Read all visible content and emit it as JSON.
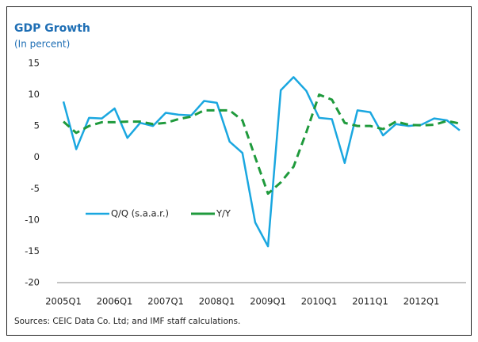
{
  "chart_data": {
    "type": "line",
    "title": "GDP Growth",
    "subtitle": "(In percent)",
    "source": "Sources: CEIC Data Co. Ltd; and IMF staff calculations.",
    "categories": [
      "2005Q1",
      null,
      null,
      null,
      "2006Q1",
      null,
      null,
      null,
      "2007Q1",
      null,
      null,
      null,
      "2008Q1",
      null,
      null,
      null,
      "2009Q1",
      null,
      null,
      null,
      "2010Q1",
      null,
      null,
      null,
      "2011Q1",
      null,
      null,
      null,
      "2012Q1",
      null,
      null,
      null
    ],
    "series": [
      {
        "name": "Q/Q (s.a.a.r.)",
        "color": "#1aa7e0",
        "dashed": false,
        "values": [
          8.9,
          1.3,
          6.3,
          6.2,
          7.8,
          3.1,
          5.5,
          5.0,
          7.1,
          6.8,
          6.7,
          9.0,
          8.7,
          2.5,
          0.7,
          -10.4,
          -14.2,
          10.7,
          12.8,
          10.6,
          6.3,
          6.1,
          -0.9,
          7.5,
          7.2,
          3.5,
          5.3,
          5.0,
          5.2,
          6.2,
          5.9,
          4.3
        ]
      },
      {
        "name": "Y/Y",
        "color": "#1f9a3c",
        "dashed": true,
        "values": [
          5.7,
          3.9,
          5.0,
          5.6,
          5.6,
          5.7,
          5.7,
          5.3,
          5.5,
          6.1,
          6.5,
          7.5,
          7.5,
          7.5,
          5.9,
          0.0,
          -5.8,
          -4.0,
          -1.5,
          4.0,
          10.0,
          9.2,
          5.5,
          5.0,
          5.0,
          4.5,
          5.7,
          5.2,
          5.1,
          5.2,
          5.8,
          5.4
        ]
      }
    ],
    "ylim": [
      -20,
      15
    ],
    "yticks": [
      -20,
      -15,
      -10,
      -5,
      0,
      5,
      10,
      15
    ],
    "legend": "middle-left"
  }
}
